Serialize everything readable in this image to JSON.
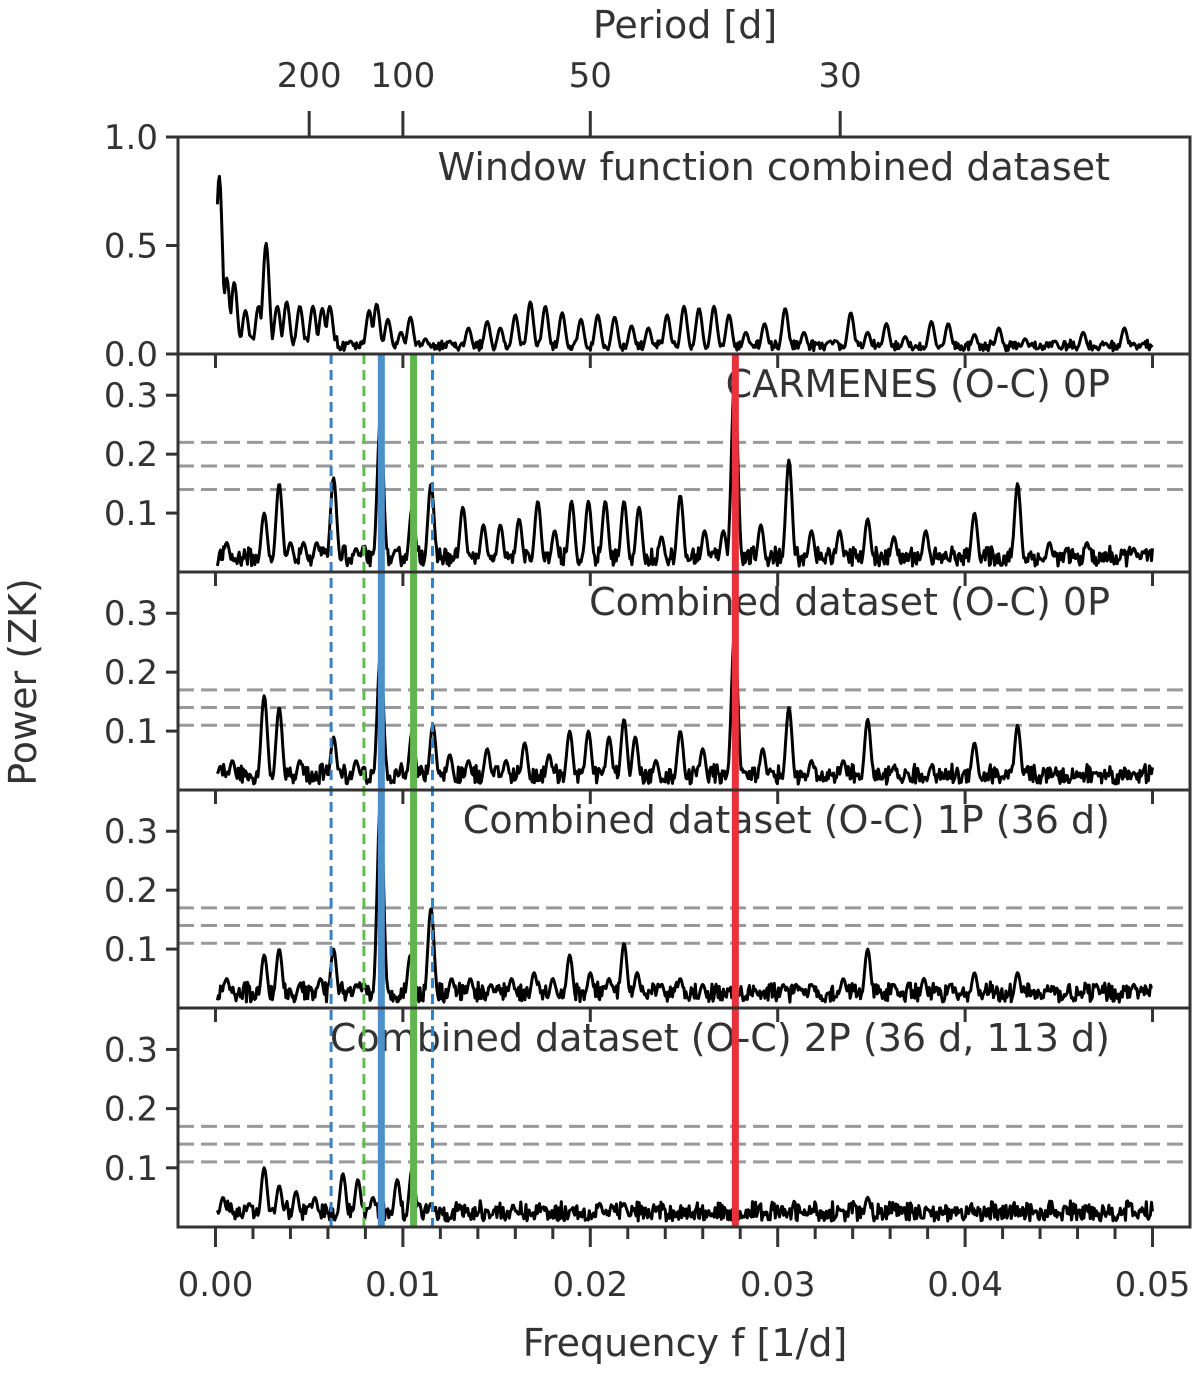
{
  "chart_data": {
    "type": "line",
    "x_label": "Frequency f [1/d]",
    "x_top_label": "Period [d]",
    "y_label": "Power (ZK)",
    "xlim": [
      -0.002,
      0.052
    ],
    "x_ticks": [
      0.0,
      0.01,
      0.02,
      0.03,
      0.04,
      0.05
    ],
    "x_tick_labels": [
      "0.00",
      "0.01",
      "0.02",
      "0.03",
      "0.04",
      "0.05"
    ],
    "top_ticks": [
      {
        "period": 200,
        "label": "200"
      },
      {
        "period": 100,
        "label": "100"
      },
      {
        "period": 50,
        "label": "50"
      },
      {
        "period": 30,
        "label": "30"
      }
    ],
    "vertical_markers": [
      {
        "freq": 0.00617,
        "color": "#3b7fc4",
        "style": "dashed"
      },
      {
        "freq": 0.00792,
        "color": "#5fbf4a",
        "style": "dashed"
      },
      {
        "freq": 0.00885,
        "color": "#4a8fd0",
        "style": "solid"
      },
      {
        "freq": 0.01057,
        "color": "#5cb84a",
        "style": "solid"
      },
      {
        "freq": 0.01158,
        "color": "#3b7fc4",
        "style": "dashed"
      },
      {
        "freq": 0.02774,
        "color": "#e8323a",
        "style": "solid"
      }
    ],
    "panels": [
      {
        "title": "Window function combined dataset",
        "ylim": [
          0.0,
          1.0
        ],
        "y_ticks": [
          0.0,
          0.5,
          1.0
        ],
        "y_tick_labels": [
          "0.0",
          "0.5",
          "1.0"
        ],
        "fap_levels": [],
        "peaks": [
          [
            0.0002,
            0.82
          ],
          [
            0.0006,
            0.35
          ],
          [
            0.001,
            0.33
          ],
          [
            0.0016,
            0.2
          ],
          [
            0.0023,
            0.22
          ],
          [
            0.0027,
            0.51
          ],
          [
            0.0033,
            0.22
          ],
          [
            0.0038,
            0.24
          ],
          [
            0.0045,
            0.22
          ],
          [
            0.0052,
            0.22
          ],
          [
            0.0057,
            0.21
          ],
          [
            0.0061,
            0.22
          ],
          [
            0.0072,
            0.06
          ],
          [
            0.0082,
            0.2
          ],
          [
            0.0086,
            0.23
          ],
          [
            0.0092,
            0.16
          ],
          [
            0.0099,
            0.1
          ],
          [
            0.0104,
            0.17
          ],
          [
            0.0112,
            0.07
          ],
          [
            0.0125,
            0.06
          ],
          [
            0.0135,
            0.12
          ],
          [
            0.0145,
            0.15
          ],
          [
            0.0152,
            0.12
          ],
          [
            0.016,
            0.18
          ],
          [
            0.0168,
            0.24
          ],
          [
            0.0176,
            0.22
          ],
          [
            0.0185,
            0.19
          ],
          [
            0.0195,
            0.16
          ],
          [
            0.0204,
            0.18
          ],
          [
            0.0213,
            0.17
          ],
          [
            0.0222,
            0.13
          ],
          [
            0.0231,
            0.12
          ],
          [
            0.0241,
            0.18
          ],
          [
            0.025,
            0.22
          ],
          [
            0.0258,
            0.21
          ],
          [
            0.0266,
            0.22
          ],
          [
            0.0274,
            0.18
          ],
          [
            0.0283,
            0.1
          ],
          [
            0.0293,
            0.14
          ],
          [
            0.0304,
            0.21
          ],
          [
            0.0314,
            0.1
          ],
          [
            0.0328,
            0.06
          ],
          [
            0.0339,
            0.19
          ],
          [
            0.0348,
            0.1
          ],
          [
            0.0358,
            0.14
          ],
          [
            0.0368,
            0.08
          ],
          [
            0.0382,
            0.15
          ],
          [
            0.0391,
            0.14
          ],
          [
            0.0405,
            0.09
          ],
          [
            0.0418,
            0.12
          ],
          [
            0.0432,
            0.07
          ],
          [
            0.0448,
            0.06
          ],
          [
            0.0463,
            0.1
          ],
          [
            0.0475,
            0.05
          ],
          [
            0.0485,
            0.12
          ],
          [
            0.0495,
            0.05
          ]
        ]
      },
      {
        "title": "CARMENES (O-C) 0P",
        "ylim": [
          0.0,
          0.37
        ],
        "y_ticks": [
          0.1,
          0.2,
          0.3
        ],
        "y_tick_labels": [
          "0.1",
          "0.2",
          "0.3"
        ],
        "fap_levels": [
          0.14,
          0.18,
          0.22
        ],
        "peaks": [
          [
            0.0006,
            0.05
          ],
          [
            0.0026,
            0.1
          ],
          [
            0.0034,
            0.15
          ],
          [
            0.004,
            0.05
          ],
          [
            0.0047,
            0.05
          ],
          [
            0.0054,
            0.05
          ],
          [
            0.0063,
            0.16
          ],
          [
            0.0075,
            0.04
          ],
          [
            0.0088,
            0.26
          ],
          [
            0.0105,
            0.11
          ],
          [
            0.0115,
            0.15
          ],
          [
            0.0132,
            0.11
          ],
          [
            0.0143,
            0.08
          ],
          [
            0.0152,
            0.08
          ],
          [
            0.0162,
            0.09
          ],
          [
            0.0172,
            0.12
          ],
          [
            0.0181,
            0.07
          ],
          [
            0.019,
            0.12
          ],
          [
            0.0199,
            0.12
          ],
          [
            0.0208,
            0.12
          ],
          [
            0.0218,
            0.12
          ],
          [
            0.0226,
            0.11
          ],
          [
            0.0238,
            0.06
          ],
          [
            0.0248,
            0.13
          ],
          [
            0.0261,
            0.07
          ],
          [
            0.0271,
            0.07
          ],
          [
            0.0277,
            0.33
          ],
          [
            0.0291,
            0.08
          ],
          [
            0.0306,
            0.19
          ],
          [
            0.0318,
            0.07
          ],
          [
            0.0333,
            0.07
          ],
          [
            0.0348,
            0.09
          ],
          [
            0.0362,
            0.06
          ],
          [
            0.0379,
            0.07
          ],
          [
            0.0405,
            0.1
          ],
          [
            0.0428,
            0.15
          ],
          [
            0.0445,
            0.05
          ],
          [
            0.0465,
            0.05
          ],
          [
            0.049,
            0.04
          ]
        ]
      },
      {
        "title": "Combined dataset (O-C) 0P",
        "ylim": [
          0.0,
          0.37
        ],
        "y_ticks": [
          0.1,
          0.2,
          0.3
        ],
        "y_tick_labels": [
          "0.1",
          "0.2",
          "0.3"
        ],
        "fap_levels": [
          0.11,
          0.14,
          0.17
        ],
        "peaks": [
          [
            0.0009,
            0.05
          ],
          [
            0.0026,
            0.16
          ],
          [
            0.0034,
            0.14
          ],
          [
            0.0045,
            0.05
          ],
          [
            0.0063,
            0.09
          ],
          [
            0.0075,
            0.05
          ],
          [
            0.0088,
            0.23
          ],
          [
            0.0105,
            0.1
          ],
          [
            0.0116,
            0.11
          ],
          [
            0.0125,
            0.06
          ],
          [
            0.0135,
            0.05
          ],
          [
            0.0145,
            0.07
          ],
          [
            0.0155,
            0.05
          ],
          [
            0.0165,
            0.08
          ],
          [
            0.0178,
            0.06
          ],
          [
            0.0189,
            0.1
          ],
          [
            0.0199,
            0.1
          ],
          [
            0.021,
            0.09
          ],
          [
            0.0218,
            0.12
          ],
          [
            0.0224,
            0.09
          ],
          [
            0.0235,
            0.05
          ],
          [
            0.0248,
            0.1
          ],
          [
            0.026,
            0.07
          ],
          [
            0.0277,
            0.27
          ],
          [
            0.0292,
            0.07
          ],
          [
            0.0306,
            0.14
          ],
          [
            0.0318,
            0.05
          ],
          [
            0.0335,
            0.05
          ],
          [
            0.0348,
            0.12
          ],
          [
            0.0362,
            0.04
          ],
          [
            0.0382,
            0.04
          ],
          [
            0.0405,
            0.08
          ],
          [
            0.0428,
            0.11
          ],
          [
            0.0448,
            0.03
          ],
          [
            0.047,
            0.03
          ],
          [
            0.049,
            0.03
          ]
        ]
      },
      {
        "title": "Combined dataset (O-C) 1P (36 d)",
        "ylim": [
          0.0,
          0.37
        ],
        "y_ticks": [
          0.1,
          0.2,
          0.3
        ],
        "y_tick_labels": [
          "0.1",
          "0.2",
          "0.3"
        ],
        "fap_levels": [
          0.11,
          0.14,
          0.17
        ],
        "peaks": [
          [
            0.0006,
            0.05
          ],
          [
            0.0026,
            0.09
          ],
          [
            0.0034,
            0.1
          ],
          [
            0.0045,
            0.04
          ],
          [
            0.0056,
            0.05
          ],
          [
            0.0063,
            0.1
          ],
          [
            0.0075,
            0.04
          ],
          [
            0.0088,
            0.35
          ],
          [
            0.0104,
            0.09
          ],
          [
            0.0115,
            0.17
          ],
          [
            0.0126,
            0.05
          ],
          [
            0.0136,
            0.05
          ],
          [
            0.0147,
            0.04
          ],
          [
            0.0158,
            0.05
          ],
          [
            0.017,
            0.06
          ],
          [
            0.018,
            0.05
          ],
          [
            0.0189,
            0.09
          ],
          [
            0.02,
            0.06
          ],
          [
            0.021,
            0.05
          ],
          [
            0.0218,
            0.11
          ],
          [
            0.0225,
            0.06
          ],
          [
            0.0238,
            0.04
          ],
          [
            0.0248,
            0.05
          ],
          [
            0.026,
            0.04
          ],
          [
            0.0272,
            0.02
          ],
          [
            0.0288,
            0.03
          ],
          [
            0.0303,
            0.04
          ],
          [
            0.0318,
            0.04
          ],
          [
            0.0335,
            0.05
          ],
          [
            0.0348,
            0.1
          ],
          [
            0.0362,
            0.04
          ],
          [
            0.0378,
            0.05
          ],
          [
            0.0392,
            0.04
          ],
          [
            0.0405,
            0.06
          ],
          [
            0.0428,
            0.06
          ],
          [
            0.0445,
            0.03
          ],
          [
            0.047,
            0.04
          ],
          [
            0.049,
            0.04
          ]
        ]
      },
      {
        "title": "Combined dataset (O-C) 2P (36 d, 113 d)",
        "ylim": [
          0.0,
          0.37
        ],
        "y_ticks": [
          0.1,
          0.2,
          0.3
        ],
        "y_tick_labels": [
          "0.1",
          "0.2",
          "0.3"
        ],
        "fap_levels": [
          0.11,
          0.14,
          0.17
        ],
        "peaks": [
          [
            0.0004,
            0.05
          ],
          [
            0.0018,
            0.04
          ],
          [
            0.0026,
            0.1
          ],
          [
            0.0034,
            0.07
          ],
          [
            0.0043,
            0.06
          ],
          [
            0.0053,
            0.05
          ],
          [
            0.0068,
            0.09
          ],
          [
            0.0076,
            0.08
          ],
          [
            0.0084,
            0.05
          ],
          [
            0.0097,
            0.08
          ],
          [
            0.0105,
            0.1
          ],
          [
            0.0115,
            0.04
          ],
          [
            0.013,
            0.03
          ],
          [
            0.0145,
            0.02
          ],
          [
            0.016,
            0.02
          ],
          [
            0.0175,
            0.03
          ],
          [
            0.019,
            0.03
          ],
          [
            0.0205,
            0.04
          ],
          [
            0.0218,
            0.04
          ],
          [
            0.0235,
            0.02
          ],
          [
            0.025,
            0.02
          ],
          [
            0.0265,
            0.02
          ],
          [
            0.0285,
            0.02
          ],
          [
            0.03,
            0.02
          ],
          [
            0.0315,
            0.02
          ],
          [
            0.0333,
            0.03
          ],
          [
            0.0348,
            0.05
          ],
          [
            0.0362,
            0.03
          ],
          [
            0.038,
            0.03
          ],
          [
            0.0395,
            0.02
          ],
          [
            0.0412,
            0.02
          ],
          [
            0.043,
            0.02
          ],
          [
            0.045,
            0.02
          ],
          [
            0.047,
            0.02
          ],
          [
            0.049,
            0.02
          ]
        ]
      }
    ]
  }
}
